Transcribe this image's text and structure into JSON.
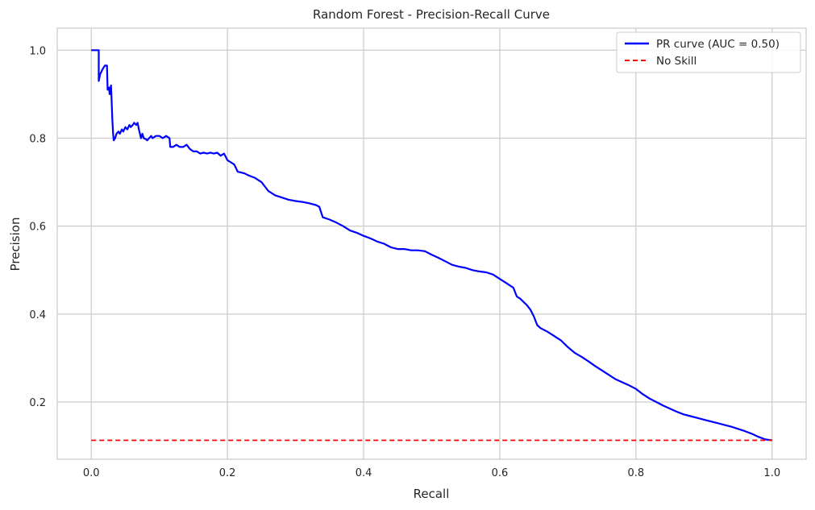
{
  "chart_data": {
    "type": "line",
    "title": "Random Forest - Precision-Recall Curve",
    "xlabel": "Recall",
    "ylabel": "Precision",
    "xlim": [
      -0.05,
      1.05
    ],
    "ylim": [
      0.07,
      1.05
    ],
    "xticks": [
      0.0,
      0.2,
      0.4,
      0.6,
      0.8,
      1.0
    ],
    "yticks": [
      0.2,
      0.4,
      0.6,
      0.8,
      1.0
    ],
    "xtick_labels": [
      "0.0",
      "0.2",
      "0.4",
      "0.6",
      "0.8",
      "1.0"
    ],
    "ytick_labels": [
      "0.2",
      "0.4",
      "0.6",
      "0.8",
      "1.0"
    ],
    "grid": true,
    "legend_position": "top-right",
    "series": [
      {
        "name": "PR curve (AUC = 0.50)",
        "color": "#0000ff",
        "style": "solid",
        "x": [
          0.0,
          0.011,
          0.011,
          0.013,
          0.016,
          0.018,
          0.02,
          0.023,
          0.024,
          0.026,
          0.027,
          0.029,
          0.03,
          0.031,
          0.032,
          0.033,
          0.035,
          0.037,
          0.04,
          0.042,
          0.045,
          0.047,
          0.05,
          0.053,
          0.056,
          0.058,
          0.061,
          0.063,
          0.066,
          0.068,
          0.07,
          0.073,
          0.075,
          0.077,
          0.08,
          0.082,
          0.085,
          0.088,
          0.09,
          0.095,
          0.1,
          0.105,
          0.11,
          0.115,
          0.116,
          0.12,
          0.125,
          0.13,
          0.135,
          0.14,
          0.145,
          0.15,
          0.155,
          0.16,
          0.165,
          0.17,
          0.175,
          0.18,
          0.185,
          0.19,
          0.195,
          0.2,
          0.205,
          0.21,
          0.215,
          0.22,
          0.225,
          0.23,
          0.235,
          0.24,
          0.245,
          0.25,
          0.255,
          0.26,
          0.27,
          0.28,
          0.29,
          0.3,
          0.31,
          0.32,
          0.33,
          0.335,
          0.34,
          0.35,
          0.36,
          0.37,
          0.38,
          0.39,
          0.4,
          0.41,
          0.42,
          0.43,
          0.44,
          0.45,
          0.46,
          0.47,
          0.48,
          0.49,
          0.5,
          0.51,
          0.52,
          0.53,
          0.54,
          0.55,
          0.56,
          0.57,
          0.58,
          0.59,
          0.6,
          0.61,
          0.62,
          0.625,
          0.63,
          0.64,
          0.645,
          0.65,
          0.655,
          0.66,
          0.67,
          0.68,
          0.69,
          0.7,
          0.71,
          0.72,
          0.73,
          0.74,
          0.75,
          0.76,
          0.77,
          0.78,
          0.79,
          0.8,
          0.81,
          0.82,
          0.83,
          0.84,
          0.85,
          0.86,
          0.87,
          0.88,
          0.89,
          0.9,
          0.91,
          0.92,
          0.93,
          0.94,
          0.95,
          0.96,
          0.97,
          0.98,
          0.99,
          1.0
        ],
        "y": [
          1.0,
          1.0,
          0.93,
          0.945,
          0.955,
          0.96,
          0.965,
          0.965,
          0.91,
          0.915,
          0.9,
          0.92,
          0.88,
          0.84,
          0.81,
          0.795,
          0.8,
          0.81,
          0.815,
          0.81,
          0.82,
          0.815,
          0.825,
          0.82,
          0.83,
          0.825,
          0.83,
          0.835,
          0.83,
          0.835,
          0.82,
          0.8,
          0.81,
          0.8,
          0.798,
          0.795,
          0.8,
          0.805,
          0.8,
          0.805,
          0.805,
          0.8,
          0.805,
          0.8,
          0.78,
          0.78,
          0.785,
          0.78,
          0.78,
          0.785,
          0.775,
          0.77,
          0.77,
          0.765,
          0.767,
          0.765,
          0.767,
          0.765,
          0.767,
          0.76,
          0.765,
          0.75,
          0.745,
          0.74,
          0.724,
          0.722,
          0.72,
          0.716,
          0.713,
          0.71,
          0.705,
          0.7,
          0.69,
          0.68,
          0.67,
          0.665,
          0.66,
          0.657,
          0.655,
          0.652,
          0.648,
          0.644,
          0.62,
          0.615,
          0.608,
          0.6,
          0.59,
          0.585,
          0.578,
          0.572,
          0.565,
          0.56,
          0.552,
          0.548,
          0.548,
          0.545,
          0.545,
          0.543,
          0.535,
          0.528,
          0.52,
          0.512,
          0.508,
          0.505,
          0.5,
          0.497,
          0.495,
          0.49,
          0.48,
          0.47,
          0.46,
          0.44,
          0.435,
          0.42,
          0.41,
          0.395,
          0.375,
          0.368,
          0.36,
          0.35,
          0.34,
          0.325,
          0.312,
          0.303,
          0.293,
          0.282,
          0.272,
          0.262,
          0.252,
          0.245,
          0.238,
          0.23,
          0.218,
          0.208,
          0.2,
          0.192,
          0.185,
          0.178,
          0.172,
          0.168,
          0.164,
          0.16,
          0.156,
          0.152,
          0.148,
          0.144,
          0.139,
          0.134,
          0.128,
          0.121,
          0.115,
          0.113
        ]
      },
      {
        "name": "No Skill",
        "color": "#ff0000",
        "style": "dashed",
        "x": [
          0.0,
          1.0
        ],
        "y": [
          0.113,
          0.113
        ]
      }
    ]
  }
}
